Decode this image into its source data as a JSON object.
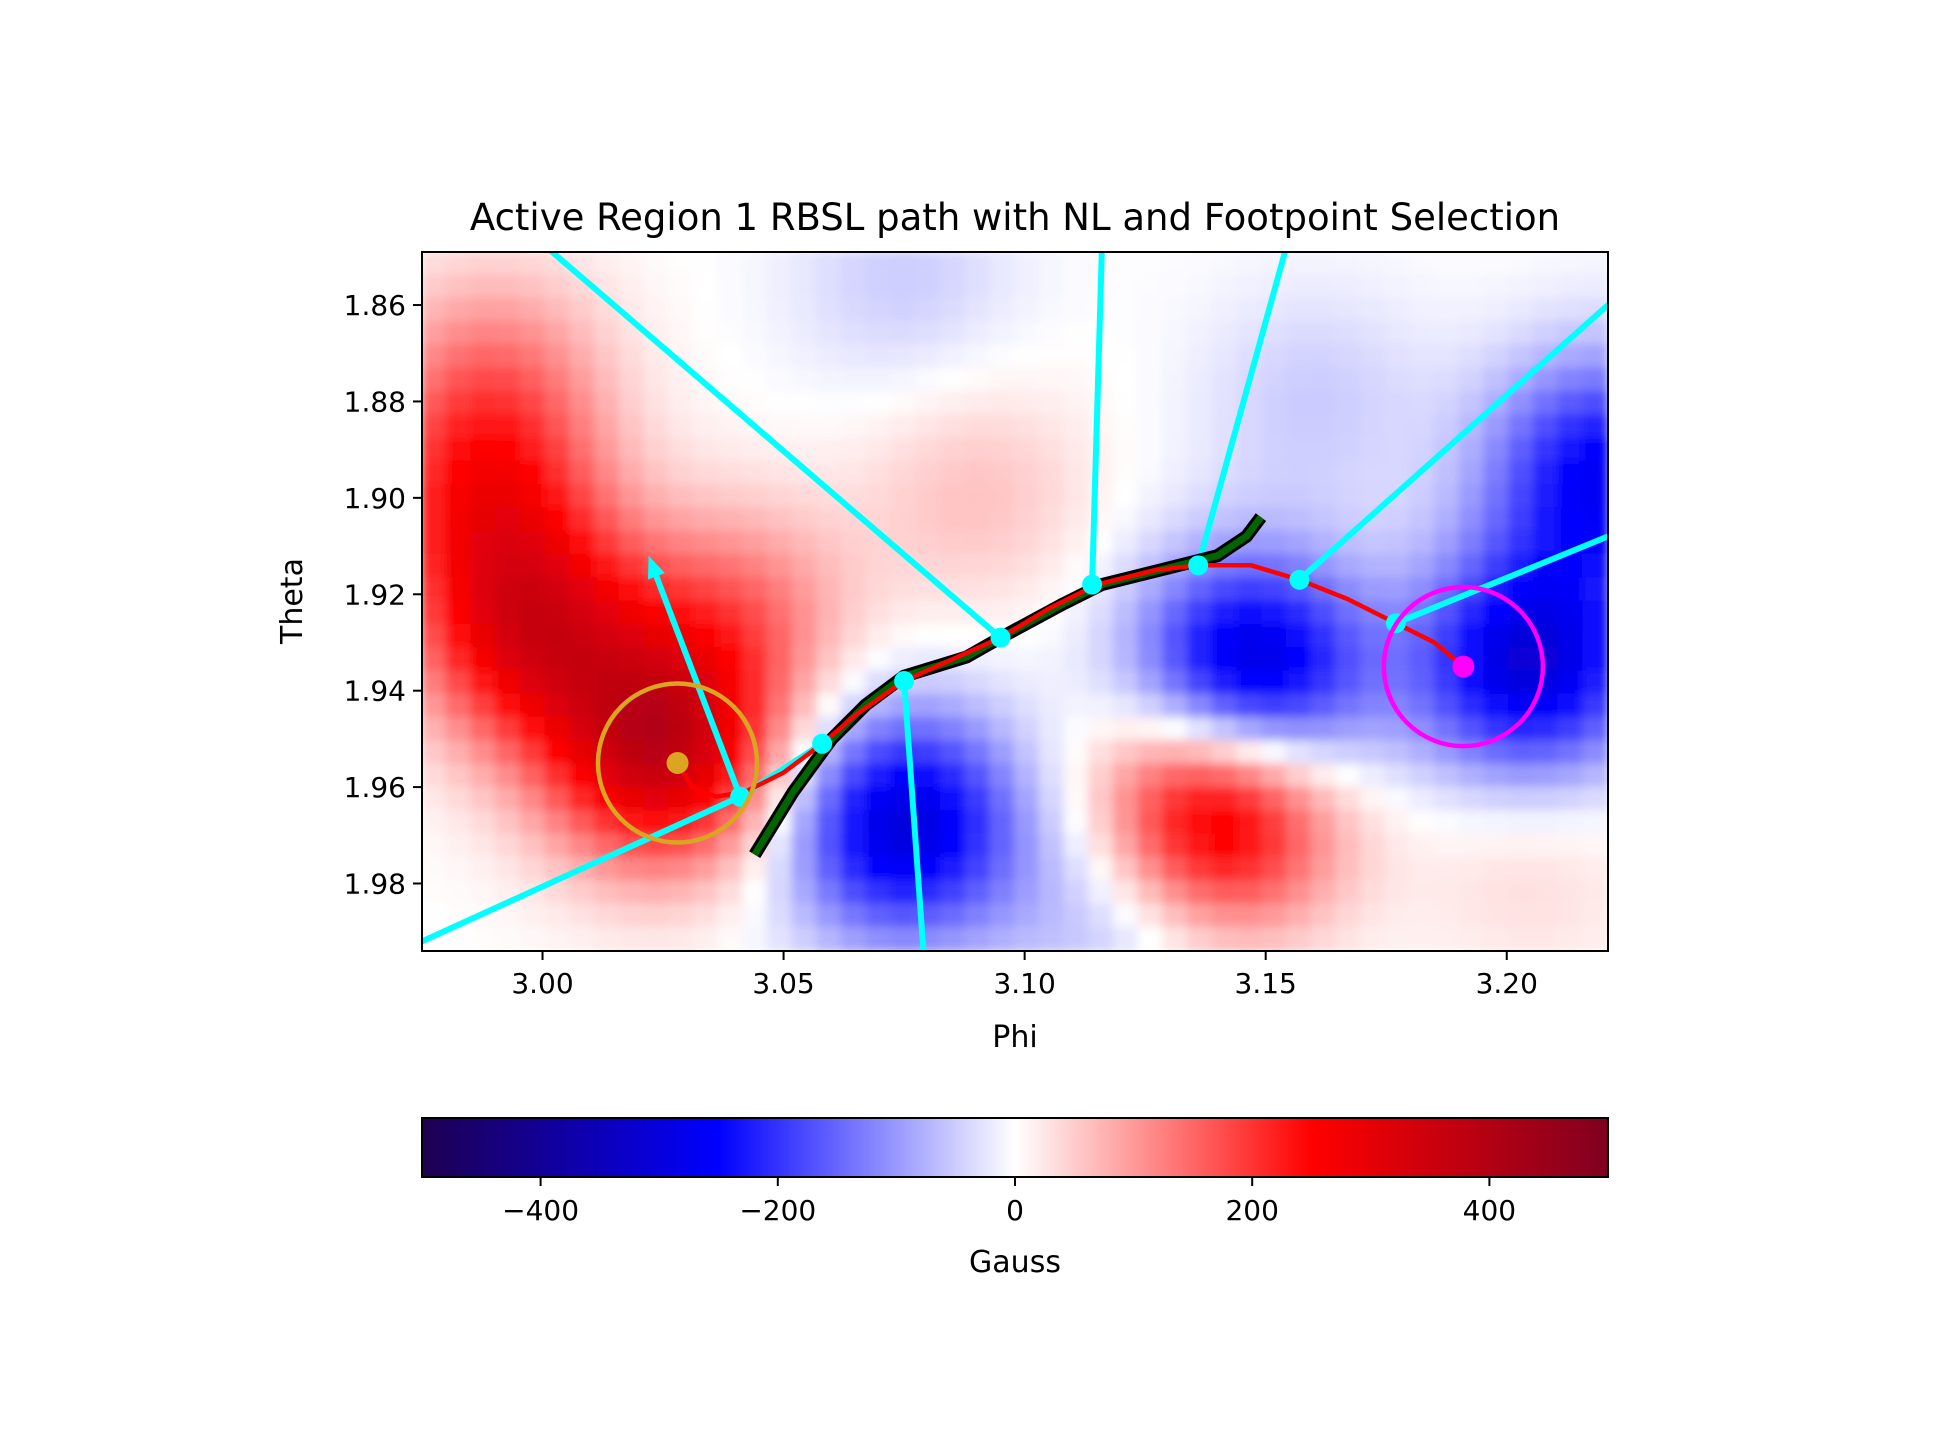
{
  "chart_data": {
    "type": "heatmap",
    "title": "Active Region 1 RBSL path with NL and Footpoint Selection",
    "xlabel": "Phi",
    "ylabel": "Theta",
    "xlim": [
      2.975,
      3.221
    ],
    "ylim": [
      1.994,
      1.849
    ],
    "y_inverted": true,
    "xticks": [
      "3.00",
      "3.05",
      "3.10",
      "3.15",
      "3.20"
    ],
    "yticks": [
      "1.86",
      "1.88",
      "1.90",
      "1.92",
      "1.94",
      "1.96",
      "1.98"
    ],
    "colorbar": {
      "label": "Gauss",
      "range": [
        -500,
        500
      ],
      "ticks": [
        "−400",
        "−200",
        "0",
        "200",
        "400"
      ],
      "colormap": [
        "#1e0050",
        "#0000ff",
        "#ffffff",
        "#ff0000",
        "#800020"
      ]
    },
    "field_blobs": [
      {
        "phi": 3.025,
        "theta": 1.953,
        "gauss": 340
      },
      {
        "phi": 2.998,
        "theta": 1.928,
        "gauss": 280
      },
      {
        "phi": 2.988,
        "theta": 1.9,
        "gauss": 190
      },
      {
        "phi": 2.99,
        "theta": 1.875,
        "gauss": 110
      },
      {
        "phi": 3.04,
        "theta": 1.925,
        "gauss": 130
      },
      {
        "phi": 3.09,
        "theta": 1.9,
        "gauss": 60
      },
      {
        "phi": 3.14,
        "theta": 1.965,
        "gauss": 340
      },
      {
        "phi": 3.205,
        "theta": 1.975,
        "gauss": 40
      },
      {
        "phi": 3.147,
        "theta": 1.937,
        "gauss": -340
      },
      {
        "phi": 3.075,
        "theta": 1.968,
        "gauss": -300
      },
      {
        "phi": 3.205,
        "theta": 1.935,
        "gauss": -300
      },
      {
        "phi": 3.22,
        "theta": 1.895,
        "gauss": -250
      },
      {
        "phi": 3.12,
        "theta": 1.985,
        "gauss": -80
      },
      {
        "phi": 3.075,
        "theta": 1.855,
        "gauss": -50
      },
      {
        "phi": 3.16,
        "theta": 1.88,
        "gauss": -50
      }
    ],
    "neutral_line": {
      "color": "#006400",
      "points": [
        [
          3.044,
          1.974
        ],
        [
          3.052,
          1.961
        ],
        [
          3.06,
          1.95
        ],
        [
          3.067,
          1.943
        ],
        [
          3.075,
          1.937
        ],
        [
          3.088,
          1.933
        ],
        [
          3.095,
          1.929
        ],
        [
          3.108,
          1.922
        ],
        [
          3.116,
          1.918
        ],
        [
          3.128,
          1.915
        ],
        [
          3.14,
          1.912
        ],
        [
          3.146,
          1.908
        ],
        [
          3.149,
          1.904
        ]
      ]
    },
    "rbsl_path": {
      "color": "#ff0000",
      "points": [
        [
          3.028,
          1.955
        ],
        [
          3.031,
          1.96
        ],
        [
          3.036,
          1.962
        ],
        [
          3.042,
          1.961
        ],
        [
          3.05,
          1.957
        ],
        [
          3.058,
          1.951
        ],
        [
          3.065,
          1.945
        ],
        [
          3.075,
          1.938
        ],
        [
          3.095,
          1.929
        ],
        [
          3.105,
          1.923
        ],
        [
          3.115,
          1.918
        ],
        [
          3.127,
          1.915
        ],
        [
          3.136,
          1.914
        ],
        [
          3.147,
          1.914
        ],
        [
          3.157,
          1.917
        ],
        [
          3.167,
          1.921
        ],
        [
          3.177,
          1.926
        ],
        [
          3.185,
          1.93
        ],
        [
          3.191,
          1.935
        ]
      ]
    },
    "normal_markers": {
      "color": "#00ffff",
      "points": [
        [
          3.041,
          1.962
        ],
        [
          3.058,
          1.951
        ],
        [
          3.075,
          1.938
        ],
        [
          3.095,
          1.929
        ],
        [
          3.114,
          1.918
        ],
        [
          3.136,
          1.914
        ],
        [
          3.157,
          1.917
        ],
        [
          3.177,
          1.926
        ]
      ]
    },
    "normal_lines": {
      "color": "#00ffff",
      "segments": [
        [
          [
            2.975,
            1.992
          ],
          [
            3.041,
            1.962
          ],
          [
            3.058,
            1.951
          ]
        ],
        [
          [
            3.075,
            1.938
          ],
          [
            3.079,
            1.994
          ]
        ],
        [
          [
            3.095,
            1.929
          ],
          [
            3.002,
            1.849
          ]
        ],
        [
          [
            3.114,
            1.918
          ],
          [
            3.116,
            1.849
          ]
        ],
        [
          [
            3.136,
            1.914
          ],
          [
            3.154,
            1.849
          ]
        ],
        [
          [
            3.157,
            1.917
          ],
          [
            3.221,
            1.86
          ]
        ],
        [
          [
            3.177,
            1.926
          ],
          [
            3.221,
            1.908
          ]
        ]
      ]
    },
    "arrow": {
      "color": "#00ffff",
      "from": [
        3.041,
        1.962
      ],
      "to": [
        3.022,
        1.912
      ]
    },
    "footpoints": [
      {
        "phi": 3.028,
        "theta": 1.955,
        "color": "#daa520",
        "circle_radius": 0.0165
      },
      {
        "phi": 3.191,
        "theta": 1.935,
        "color": "#ff00ff",
        "circle_radius": 0.0165
      }
    ]
  }
}
